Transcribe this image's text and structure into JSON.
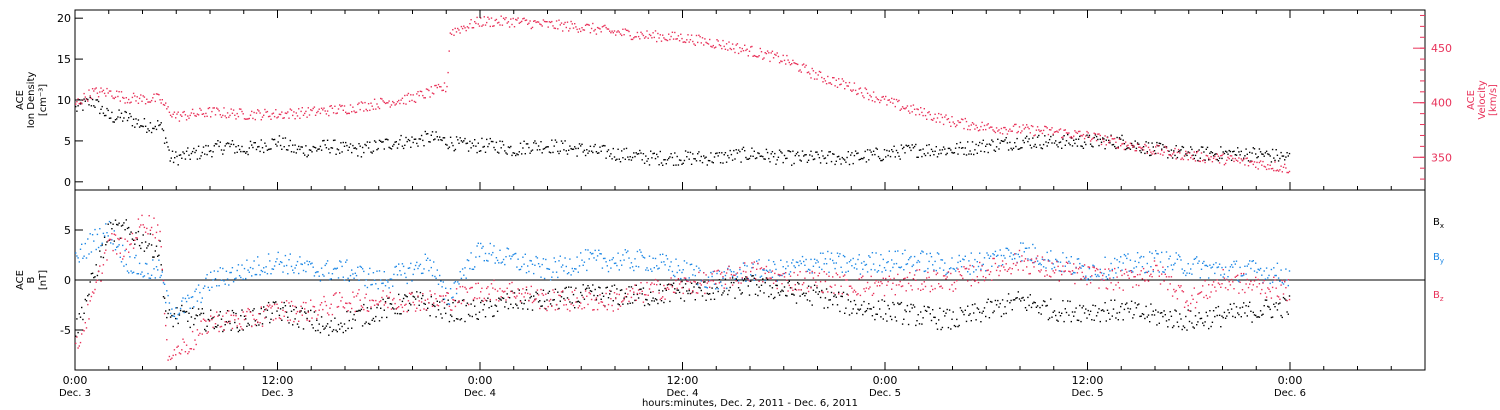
{
  "figure": {
    "xlabel": "hours:minutes, Dec. 2, 2011 - Dec. 6, 2011",
    "time_ticks": [
      {
        "hm": "0:00",
        "date": "Dec. 3",
        "hour": 0
      },
      {
        "hm": "12:00",
        "date": "Dec. 3",
        "hour": 12
      },
      {
        "hm": "0:00",
        "date": "Dec. 4",
        "hour": 24
      },
      {
        "hm": "12:00",
        "date": "Dec. 4",
        "hour": 36
      },
      {
        "hm": "0:00",
        "date": "Dec. 5",
        "hour": 48
      },
      {
        "hm": "12:00",
        "date": "Dec. 5",
        "hour": 60
      },
      {
        "hm": "0:00",
        "date": "Dec. 6",
        "hour": 72
      }
    ],
    "colors": {
      "black": "#000000",
      "red": "#e8325a",
      "blue": "#1e88e5"
    }
  },
  "chart_data": [
    {
      "type": "scatter",
      "panel": "plasma",
      "ylabel": [
        "ACE",
        "Ion Density",
        "[cm⁻³]"
      ],
      "y2label": [
        "ACE",
        "Velocity",
        "[km/s]"
      ],
      "xlim": [
        0,
        80
      ],
      "ylim": [
        -1,
        21
      ],
      "y2lim": [
        320,
        485
      ],
      "yticks": [
        0,
        5,
        10,
        15,
        20
      ],
      "y2ticks": [
        350,
        400,
        450
      ],
      "series": [
        {
          "axis": "left",
          "color": "#000000",
          "points": [
            [
              0,
              9
            ],
            [
              1,
              10
            ],
            [
              2,
              8
            ],
            [
              3,
              8
            ],
            [
              4,
              7
            ],
            [
              5,
              7
            ],
            [
              5.4,
              5
            ],
            [
              5.6,
              3
            ],
            [
              6,
              3
            ],
            [
              7,
              3.5
            ],
            [
              8,
              4
            ],
            [
              9,
              4.5
            ],
            [
              10,
              4
            ],
            [
              12,
              5
            ],
            [
              13,
              4
            ],
            [
              14,
              4
            ],
            [
              15,
              4.5
            ],
            [
              16,
              4
            ],
            [
              17,
              4
            ],
            [
              18,
              4.5
            ],
            [
              19,
              5
            ],
            [
              20,
              5
            ],
            [
              21,
              5.5
            ],
            [
              22,
              5
            ],
            [
              23,
              4.5
            ],
            [
              24,
              4.5
            ],
            [
              25,
              4.5
            ],
            [
              26,
              4
            ],
            [
              27,
              4.5
            ],
            [
              28,
              4.5
            ],
            [
              30,
              4
            ],
            [
              32,
              3.5
            ],
            [
              34,
              3
            ],
            [
              36,
              3
            ],
            [
              38,
              3
            ],
            [
              40,
              3.5
            ],
            [
              42,
              3
            ],
            [
              44,
              3
            ],
            [
              46,
              3
            ],
            [
              48,
              3.5
            ],
            [
              50,
              4
            ],
            [
              52,
              4
            ],
            [
              54,
              4.5
            ],
            [
              56,
              5
            ],
            [
              58,
              5
            ],
            [
              60,
              5
            ],
            [
              62,
              5
            ],
            [
              64,
              4
            ],
            [
              66,
              3.5
            ],
            [
              68,
              3.5
            ],
            [
              70,
              3.5
            ],
            [
              72,
              3
            ]
          ]
        },
        {
          "axis": "right",
          "color": "#e8325a",
          "points": [
            [
              0,
              400
            ],
            [
              1,
              410
            ],
            [
              2,
              410
            ],
            [
              3,
              405
            ],
            [
              4,
              404
            ],
            [
              5,
              404
            ],
            [
              5.4,
              395
            ],
            [
              6,
              388
            ],
            [
              8,
              392
            ],
            [
              10,
              390
            ],
            [
              12,
              390
            ],
            [
              14,
              392
            ],
            [
              16,
              395
            ],
            [
              18,
              400
            ],
            [
              20,
              405
            ],
            [
              21,
              410
            ],
            [
              22,
              415
            ],
            [
              22.2,
              465
            ],
            [
              23,
              470
            ],
            [
              24,
              475
            ],
            [
              26,
              475
            ],
            [
              28,
              472
            ],
            [
              30,
              470
            ],
            [
              32,
              465
            ],
            [
              34,
              462
            ],
            [
              36,
              460
            ],
            [
              38,
              455
            ],
            [
              40,
              448
            ],
            [
              42,
              440
            ],
            [
              44,
              425
            ],
            [
              46,
              415
            ],
            [
              48,
              402
            ],
            [
              50,
              392
            ],
            [
              52,
              383
            ],
            [
              54,
              378
            ],
            [
              56,
              376
            ],
            [
              58,
              374
            ],
            [
              60,
              370
            ],
            [
              62,
              363
            ],
            [
              64,
              357
            ],
            [
              66,
              352
            ],
            [
              68,
              349
            ],
            [
              70,
              345
            ],
            [
              72,
              340
            ]
          ]
        }
      ]
    },
    {
      "type": "scatter",
      "panel": "magnetic",
      "ylabel": [
        "ACE",
        "B",
        "[nT]"
      ],
      "xlim": [
        0,
        80
      ],
      "ylim": [
        -9,
        9
      ],
      "yticks": [
        -5,
        0,
        5
      ],
      "zero_line": true,
      "legend_position": "right",
      "series": [
        {
          "name": "B",
          "subscript": "x",
          "color": "#000000",
          "points": [
            [
              0,
              -5
            ],
            [
              1,
              0
            ],
            [
              2,
              5
            ],
            [
              3,
              5
            ],
            [
              4,
              4
            ],
            [
              5,
              3
            ],
            [
              5.4,
              -4
            ],
            [
              6,
              -3.5
            ],
            [
              8,
              -4
            ],
            [
              10,
              -4
            ],
            [
              12,
              -3
            ],
            [
              14,
              -4
            ],
            [
              15,
              -5
            ],
            [
              16,
              -4
            ],
            [
              18,
              -3
            ],
            [
              20,
              -2
            ],
            [
              22,
              -3
            ],
            [
              24,
              -3
            ],
            [
              26,
              -2
            ],
            [
              28,
              -2
            ],
            [
              30,
              -1.5
            ],
            [
              32,
              -1.5
            ],
            [
              34,
              -1.5
            ],
            [
              36,
              -1
            ],
            [
              38,
              -1
            ],
            [
              40,
              -0.5
            ],
            [
              42,
              -1
            ],
            [
              44,
              -1.5
            ],
            [
              46,
              -2.5
            ],
            [
              48,
              -3
            ],
            [
              50,
              -3.5
            ],
            [
              52,
              -4
            ],
            [
              54,
              -3
            ],
            [
              56,
              -2
            ],
            [
              58,
              -3
            ],
            [
              60,
              -3
            ],
            [
              62,
              -3
            ],
            [
              64,
              -3.5
            ],
            [
              66,
              -4
            ],
            [
              68,
              -3.5
            ],
            [
              70,
              -3
            ],
            [
              72,
              -2.5
            ]
          ]
        },
        {
          "name": "B",
          "subscript": "y",
          "color": "#1e88e5",
          "points": [
            [
              0,
              2
            ],
            [
              1,
              4
            ],
            [
              2,
              5
            ],
            [
              3,
              2
            ],
            [
              4,
              1
            ],
            [
              5,
              1
            ],
            [
              5.4,
              -2
            ],
            [
              6,
              -3
            ],
            [
              7,
              -2
            ],
            [
              8,
              0
            ],
            [
              10,
              1
            ],
            [
              12,
              2
            ],
            [
              14,
              1
            ],
            [
              16,
              1
            ],
            [
              18,
              0
            ],
            [
              20,
              1
            ],
            [
              21,
              2
            ],
            [
              22,
              -2
            ],
            [
              23,
              1
            ],
            [
              24,
              3
            ],
            [
              26,
              2
            ],
            [
              28,
              1
            ],
            [
              30,
              2
            ],
            [
              32,
              2
            ],
            [
              34,
              2
            ],
            [
              36,
              1
            ],
            [
              38,
              0
            ],
            [
              40,
              1
            ],
            [
              42,
              1
            ],
            [
              44,
              2
            ],
            [
              46,
              1.5
            ],
            [
              48,
              2
            ],
            [
              50,
              2
            ],
            [
              52,
              1.5
            ],
            [
              54,
              2
            ],
            [
              56,
              3
            ],
            [
              58,
              2
            ],
            [
              60,
              1
            ],
            [
              62,
              1.5
            ],
            [
              64,
              2
            ],
            [
              66,
              1.5
            ],
            [
              68,
              1
            ],
            [
              70,
              1
            ],
            [
              72,
              0.5
            ]
          ]
        },
        {
          "name": "B",
          "subscript": "z",
          "color": "#e8325a",
          "points": [
            [
              0,
              -7
            ],
            [
              1,
              -2
            ],
            [
              2,
              4
            ],
            [
              3,
              3
            ],
            [
              4,
              6
            ],
            [
              5,
              5
            ],
            [
              5.4,
              -7
            ],
            [
              6,
              -7
            ],
            [
              7,
              -6
            ],
            [
              8,
              -4
            ],
            [
              10,
              -4
            ],
            [
              12,
              -3
            ],
            [
              14,
              -3
            ],
            [
              16,
              -2
            ],
            [
              18,
              -2
            ],
            [
              20,
              -2
            ],
            [
              22,
              -2
            ],
            [
              24,
              -1
            ],
            [
              26,
              -1
            ],
            [
              28,
              -2
            ],
            [
              30,
              -2
            ],
            [
              32,
              -2
            ],
            [
              34,
              -1
            ],
            [
              36,
              -0.5
            ],
            [
              38,
              0
            ],
            [
              40,
              1
            ],
            [
              42,
              0
            ],
            [
              44,
              0
            ],
            [
              46,
              -0.5
            ],
            [
              48,
              -0.5
            ],
            [
              50,
              0
            ],
            [
              52,
              0
            ],
            [
              54,
              1
            ],
            [
              56,
              2
            ],
            [
              58,
              1
            ],
            [
              60,
              0.5
            ],
            [
              62,
              0
            ],
            [
              64,
              1
            ],
            [
              66,
              -2
            ],
            [
              68,
              0
            ],
            [
              70,
              -0.5
            ],
            [
              72,
              -1
            ]
          ]
        }
      ]
    }
  ]
}
